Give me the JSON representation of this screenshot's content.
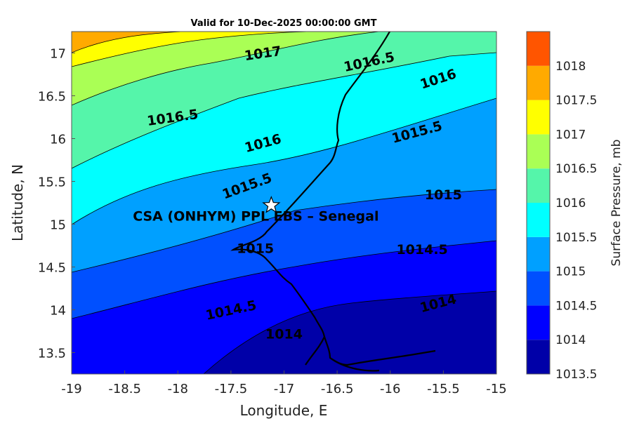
{
  "title": "Valid for 10-Dec-2025 00:00:00 GMT",
  "site_label": "CSA (ONHYM) PPL EBS  – Senegal",
  "site_location": {
    "lon": -17.12,
    "lat": 15.22
  },
  "xlabel": "Longitude, E",
  "ylabel": "Latitude, N",
  "x_ticks": [
    "-19",
    "-18.5",
    "-18",
    "-17.5",
    "-17",
    "-16.5",
    "-16",
    "-15.5",
    "-15"
  ],
  "y_ticks": [
    "13.5",
    "14",
    "14.5",
    "15",
    "15.5",
    "16",
    "16.5",
    "17"
  ],
  "xlim": [
    -19,
    -15
  ],
  "ylim": [
    13.25,
    17.25
  ],
  "colorbar": {
    "title": "Surface Pressure, mb",
    "ticks": [
      "1013.5",
      "1014",
      "1014.5",
      "1015",
      "1015.5",
      "1016",
      "1016.5",
      "1017",
      "1017.5",
      "1018"
    ],
    "colors": [
      "#0000a8",
      "#0000ff",
      "#0050ff",
      "#00a0ff",
      "#00ffff",
      "#55f5aa",
      "#aaff55",
      "#ffff00",
      "#ffaa00",
      "#ff5500"
    ]
  },
  "contour_labels": [
    {
      "text": "1017",
      "lon": -17.2,
      "lat": 17.0,
      "angle": -8
    },
    {
      "text": "1016.5",
      "lon": -16.2,
      "lat": 16.9,
      "angle": -12
    },
    {
      "text": "1016",
      "lon": -15.55,
      "lat": 16.7,
      "angle": -18
    },
    {
      "text": "1016.5",
      "lon": -18.05,
      "lat": 16.25,
      "angle": -8
    },
    {
      "text": "1016",
      "lon": -17.2,
      "lat": 15.95,
      "angle": -15
    },
    {
      "text": "1015.5",
      "lon": -15.75,
      "lat": 16.08,
      "angle": -15
    },
    {
      "text": "1015.5",
      "lon": -17.35,
      "lat": 15.45,
      "angle": -20
    },
    {
      "text": "1015",
      "lon": -15.5,
      "lat": 15.35,
      "angle": 0
    },
    {
      "text": "1015",
      "lon": -17.27,
      "lat": 14.72,
      "angle": 0
    },
    {
      "text": "1014.5",
      "lon": -15.7,
      "lat": 14.71,
      "angle": 0
    },
    {
      "text": "1014.5",
      "lon": -17.5,
      "lat": 14.0,
      "angle": -12
    },
    {
      "text": "1014",
      "lon": -15.55,
      "lat": 14.08,
      "angle": -15
    },
    {
      "text": "1014",
      "lon": -17.0,
      "lat": 13.72,
      "angle": 0
    }
  ]
}
